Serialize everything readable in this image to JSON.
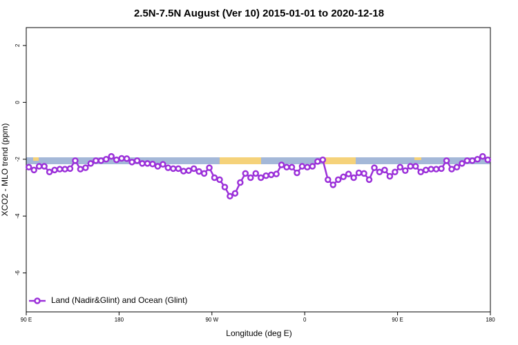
{
  "chart_data": {
    "type": "line",
    "title": "2.5N-7.5N August (Ver 10)   2015-01-01 to 2020-12-18",
    "x_label": "Longitude (deg E)",
    "y_label": "XCO2 - MLO trend (ppm)",
    "xlim": [
      90,
      540
    ],
    "xticks": [
      {
        "value": 90,
        "label": "90 E"
      },
      180,
      {
        "value": 270,
        "label": "90 W"
      },
      {
        "value": 360,
        "label": "0"
      },
      {
        "value": 450,
        "label": "90 E"
      },
      {
        "value": 540,
        "label": "180"
      }
    ],
    "ylim": [
      -7.37,
      2.63
    ],
    "yticks": [
      2,
      0,
      -2,
      -4,
      -6
    ],
    "legend": "bottom-left",
    "x": [
      92.5,
      97.5,
      102.5,
      107.5,
      112.5,
      117.5,
      122.5,
      127.5,
      132.5,
      137.5,
      142.5,
      147.5,
      152.5,
      157.5,
      162.5,
      167.5,
      172.5,
      177.5,
      182.5,
      187.5,
      192.5,
      197.5,
      202.5,
      207.5,
      212.5,
      217.5,
      222.5,
      227.5,
      232.5,
      237.5,
      242.5,
      247.5,
      252.5,
      257.5,
      262.5,
      267.5,
      272.5,
      277.5,
      282.5,
      287.5,
      292.5,
      297.5,
      302.5,
      307.5,
      312.5,
      317.5,
      322.5,
      327.5,
      332.5,
      337.5,
      342.5,
      347.5,
      352.5,
      357.5,
      362.5,
      367.5,
      372.5,
      377.5,
      382.5,
      387.5,
      392.5,
      397.5,
      402.5,
      407.5,
      412.5,
      417.5,
      422.5,
      427.5,
      432.5,
      437.5,
      442.5,
      447.5,
      452.5,
      457.5,
      462.5,
      467.5,
      472.5,
      477.5,
      482.5,
      487.5,
      492.5,
      497.5,
      502.5,
      507.5,
      512.5,
      517.5,
      522.5,
      527.5,
      532.5,
      537.5
    ],
    "series": [
      {
        "name": "Land (Nadir&Glint) and Ocean (Glint)",
        "color": "#9b30d9",
        "values": [
          -2.28,
          -2.38,
          -2.25,
          -2.25,
          -2.45,
          -2.38,
          -2.35,
          -2.35,
          -2.33,
          -2.05,
          -2.35,
          -2.3,
          -2.15,
          -2.05,
          -2.05,
          -2.0,
          -1.9,
          -2.02,
          -1.97,
          -1.98,
          -2.1,
          -2.05,
          -2.15,
          -2.15,
          -2.17,
          -2.25,
          -2.18,
          -2.3,
          -2.33,
          -2.33,
          -2.42,
          -2.4,
          -2.33,
          -2.43,
          -2.5,
          -2.3,
          -2.65,
          -2.72,
          -2.98,
          -3.3,
          -3.2,
          -2.82,
          -2.5,
          -2.65,
          -2.5,
          -2.65,
          -2.58,
          -2.55,
          -2.52,
          -2.2,
          -2.28,
          -2.28,
          -2.48,
          -2.25,
          -2.28,
          -2.25,
          -2.08,
          -2.02,
          -2.72,
          -2.9,
          -2.72,
          -2.62,
          -2.52,
          -2.65,
          -2.48,
          -2.5,
          -2.72,
          -2.3,
          -2.45,
          -2.38,
          -2.6,
          -2.45,
          -2.28,
          -2.4,
          -2.25,
          -2.25,
          -2.45,
          -2.38,
          -2.35,
          -2.35,
          -2.33,
          -2.05,
          -2.35,
          -2.28,
          -2.15,
          -2.05,
          -2.05,
          -2.0,
          -1.9,
          -2.02
        ]
      }
    ]
  }
}
